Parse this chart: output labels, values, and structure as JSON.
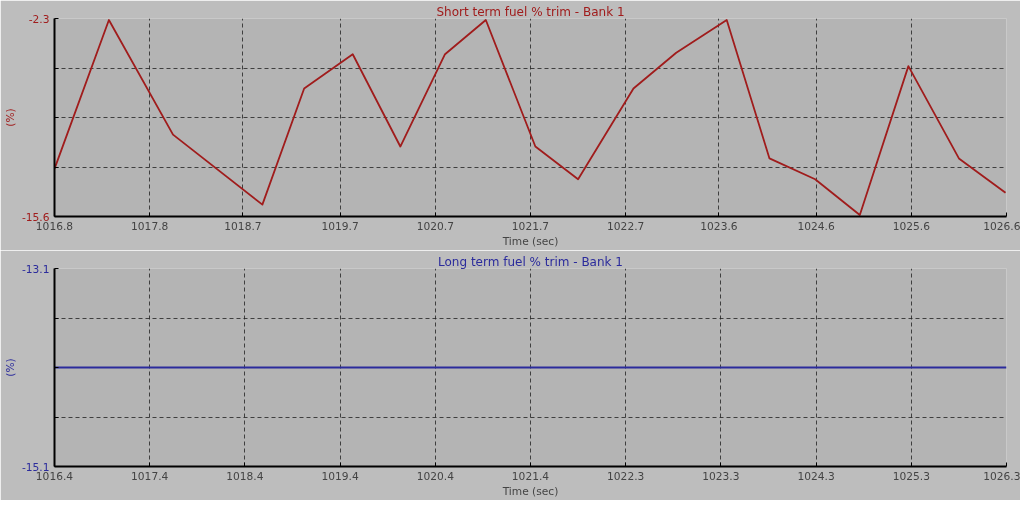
{
  "chart_data": [
    {
      "type": "line",
      "title": "Short term fuel % trim - Bank 1",
      "xlabel": "Time (sec)",
      "ylabel": "(%)",
      "series": [
        {
          "color": "#a01c1c",
          "x": [
            1016.8,
            1017.36,
            1018.02,
            1018.94,
            1019.37,
            1019.87,
            1020.36,
            1020.82,
            1021.24,
            1021.75,
            1022.19,
            1022.76,
            1023.2,
            1023.72,
            1024.16,
            1024.63,
            1025.09,
            1025.59,
            1026.11,
            1026.59
          ],
          "values": [
            -12.4,
            -2.4,
            -10.1,
            -14.8,
            -7.0,
            -4.7,
            -10.9,
            -4.7,
            -2.4,
            -10.9,
            -13.1,
            -7.0,
            -4.6,
            -2.4,
            -11.7,
            -13.1,
            -15.5,
            -5.5,
            -11.7,
            -14.0
          ]
        }
      ],
      "xlim": [
        1016.8,
        1026.6
      ],
      "xticks": [
        1016.8,
        {
          "value": 1017.78,
          "label": "1017.8"
        },
        {
          "value": 1018.74,
          "label": "1018.7"
        },
        {
          "value": 1019.74,
          "label": "1019.7"
        },
        {
          "value": 1020.72,
          "label": "1020.7"
        },
        {
          "value": 1021.7,
          "label": "1021.7"
        },
        {
          "value": 1022.68,
          "label": "1022.7"
        },
        {
          "value": 1023.64,
          "label": "1023.6"
        },
        {
          "value": 1024.64,
          "label": "1024.6"
        },
        {
          "value": 1025.62,
          "label": "1025.6"
        },
        1026.6
      ],
      "ylim": [
        -15.6,
        -2.3
      ],
      "yticks": [
        -15.6,
        {
          "value": -12.275,
          "label": null
        },
        {
          "value": -8.95,
          "label": null
        },
        {
          "value": -5.625,
          "label": null
        },
        -2.3
      ],
      "grid": true,
      "marker": "none",
      "line_style": "solid"
    },
    {
      "type": "line",
      "title": "Long term fuel % trim - Bank 1",
      "xlabel": "Time (sec)",
      "ylabel": "(%)",
      "series": [
        {
          "color": "#2b2b9c",
          "x": [
            1016.4,
            1026.3
          ],
          "values": [
            -14.1,
            -14.1
          ]
        }
      ],
      "xlim": [
        1016.4,
        1026.3
      ],
      "xticks": [
        1016.4,
        {
          "value": 1017.39,
          "label": "1017.4"
        },
        {
          "value": 1018.38,
          "label": "1018.4"
        },
        {
          "value": 1019.37,
          "label": "1019.4"
        },
        {
          "value": 1020.36,
          "label": "1020.4"
        },
        {
          "value": 1021.35,
          "label": "1021.4"
        },
        {
          "value": 1022.34,
          "label": "1022.3"
        },
        {
          "value": 1023.33,
          "label": "1023.3"
        },
        {
          "value": 1024.32,
          "label": "1024.3"
        },
        {
          "value": 1025.31,
          "label": "1025.3"
        },
        1026.3
      ],
      "ylim": [
        -15.1,
        -13.1
      ],
      "yticks": [
        -15.1,
        {
          "value": -14.6,
          "label": null
        },
        {
          "value": -14.1,
          "label": null
        },
        {
          "value": -13.6,
          "label": null
        },
        -13.1
      ],
      "grid": true,
      "marker": "none",
      "line_style": "solid"
    }
  ]
}
